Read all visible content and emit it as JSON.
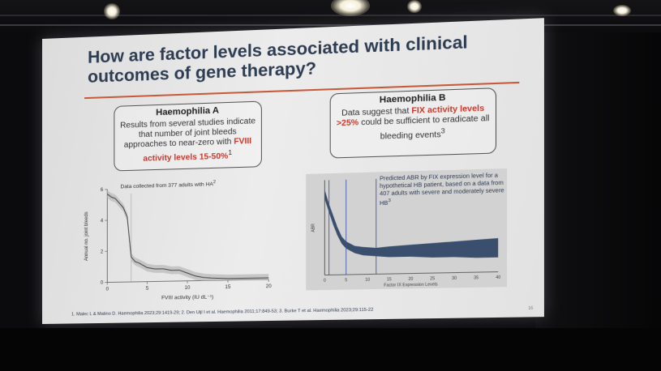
{
  "slide": {
    "title": "How are factor levels associated with clinical outcomes of gene therapy?",
    "box_a": {
      "heading": "Haemophilia A",
      "text_start": "Results from several studies indicate that number of joint bleeds approaches to near-zero with ",
      "text_highlight": "FVIII activity levels 15-50%",
      "text_sup": "1"
    },
    "box_b": {
      "heading": "Haemophilia B",
      "text_start": "Data suggest that ",
      "text_highlight": "FIX activity levels >25%",
      "text_end": " could be sufficient to eradicate all bleeding events",
      "text_sup": "3"
    },
    "chart_a_caption": "Data collected from 377 adults with HA",
    "chart_a_caption_sup": "2",
    "chart_b_caption": "Predicted ABR by FIX expression level for a hypothetical HB patient, based on a data from 407 adults with severe and moderately severe HB",
    "chart_b_caption_sup": "3",
    "references": "1. Malec L & Matino D. Haemophilia 2023;29:1419-29; 2. Den Uijl I et al. Haemophilia 2011;17:849-53; 3. Burke T et al. Haemophilia 2023;29:115-22",
    "page_number": "16"
  },
  "chart_data": [
    {
      "type": "line",
      "title": "",
      "xlabel": "FVIII activity (IU dL⁻¹)",
      "ylabel": "Annual no. joint bleeds",
      "xlim": [
        0,
        20
      ],
      "ylim": [
        0,
        6
      ],
      "xticks": [
        0,
        5,
        10,
        15,
        20
      ],
      "yticks": [
        0,
        2,
        4,
        6
      ],
      "x": [
        0,
        0.5,
        1,
        1.5,
        2,
        2.5,
        3,
        3.5,
        4,
        5,
        6,
        7,
        8,
        9,
        10,
        11,
        12,
        13,
        15,
        17,
        20
      ],
      "y": [
        5.7,
        5.5,
        5.4,
        5.1,
        4.8,
        4.2,
        1.6,
        1.3,
        1.2,
        0.9,
        0.8,
        0.8,
        0.7,
        0.7,
        0.5,
        0.3,
        0.2,
        0.15,
        0.1,
        0.1,
        0.1
      ],
      "grid": false
    },
    {
      "type": "area",
      "title": "",
      "xlabel": "Factor IX Expression Levels",
      "ylabel": "ABR",
      "xlim": [
        0,
        40
      ],
      "xticks": [
        0,
        5,
        10,
        15,
        20,
        25,
        30,
        35,
        40
      ],
      "x": [
        0,
        1,
        2,
        3,
        4,
        5,
        7,
        9,
        12,
        15,
        20,
        25,
        30,
        35,
        40
      ],
      "y_upper": [
        7.2,
        6.0,
        5.0,
        4.0,
        3.2,
        2.8,
        2.4,
        2.3,
        2.2,
        2.3,
        2.4,
        2.5,
        2.6,
        2.7,
        2.8
      ],
      "y_lower": [
        6.4,
        5.3,
        4.2,
        3.3,
        2.6,
        2.2,
        1.8,
        1.6,
        1.5,
        1.4,
        1.4,
        1.3,
        1.3,
        1.2,
        1.2
      ],
      "vlines": [
        1,
        5,
        12
      ],
      "band_color": "#3a4f6e",
      "grid": false
    }
  ]
}
